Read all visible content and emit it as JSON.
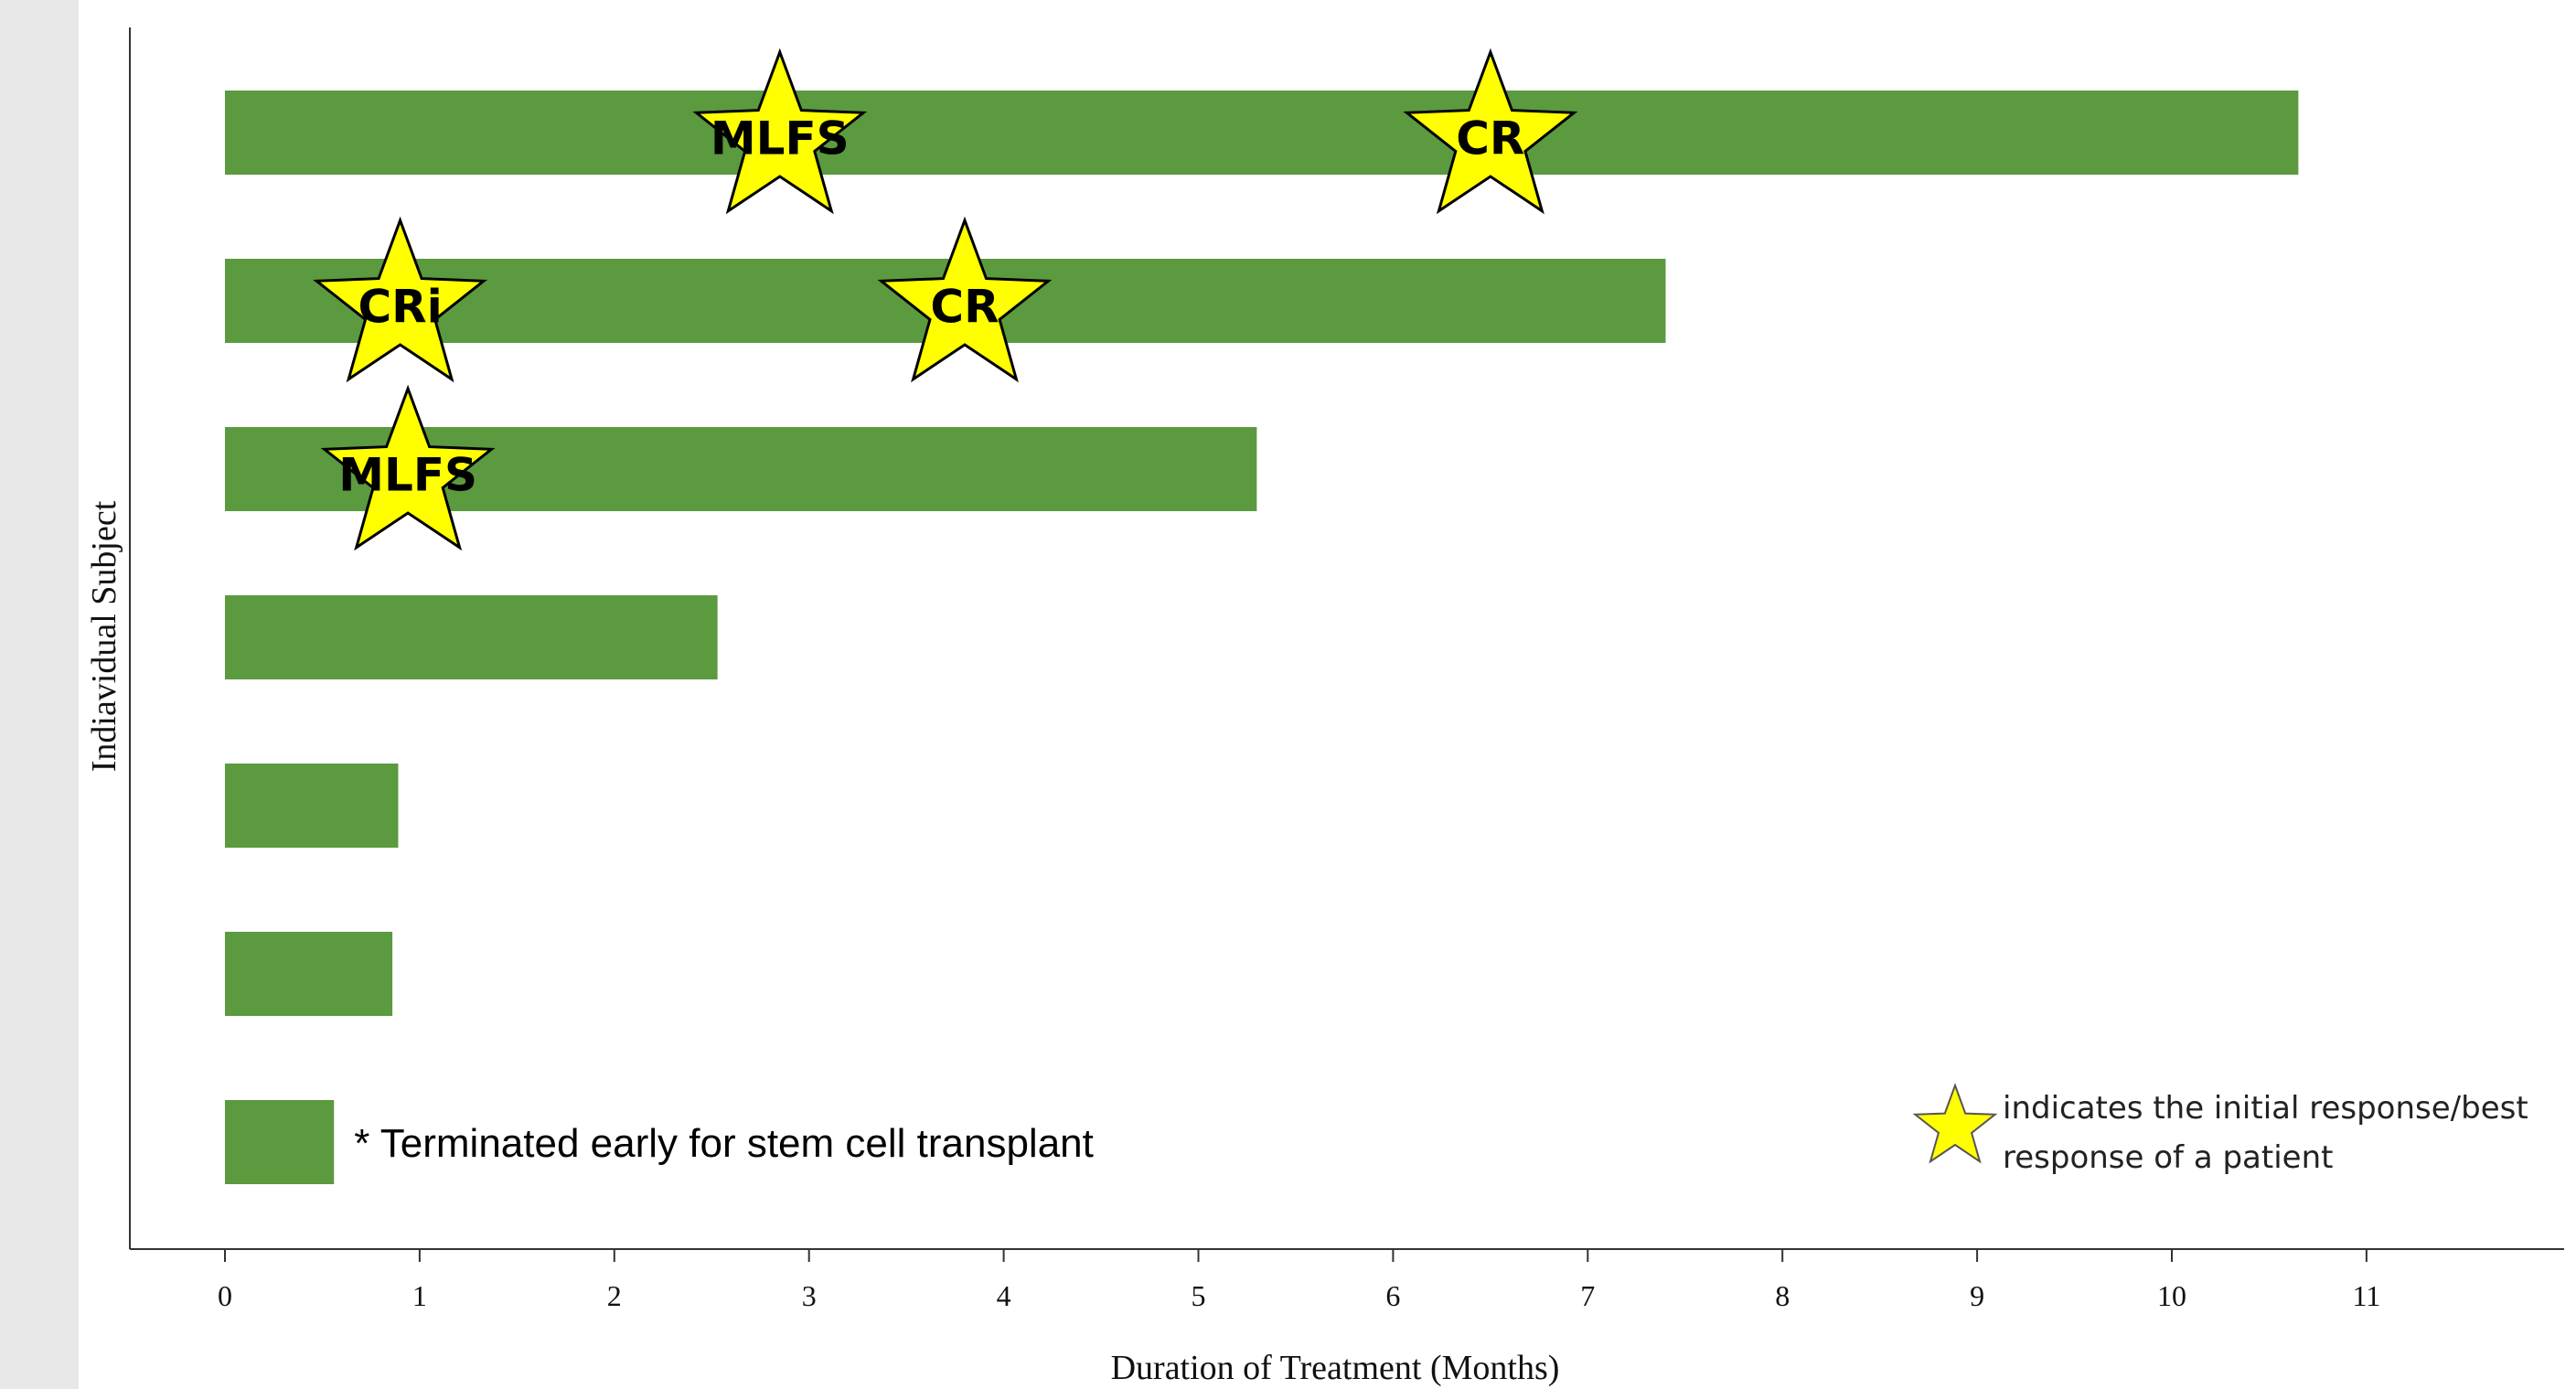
{
  "chart_data": {
    "type": "bar",
    "orientation": "horizontal",
    "xlabel": "Duration of Treatment (Months)",
    "ylabel": "Indiavidual Subject",
    "xlim": [
      0,
      11
    ],
    "xticks": [
      0,
      1,
      2,
      3,
      4,
      5,
      6,
      7,
      8,
      9,
      10,
      11
    ],
    "bar_color": "#5b9a3e",
    "star_color": "#ffff00",
    "values": [
      10.65,
      7.4,
      5.3,
      2.53,
      0.89,
      0.86,
      0.56
    ],
    "responses": [
      [
        {
          "label": "MLFS",
          "x": 2.85
        },
        {
          "label": "CR",
          "x": 6.5
        }
      ],
      [
        {
          "label": "CRi",
          "x": 0.9
        },
        {
          "label": "CR",
          "x": 3.8
        }
      ],
      [
        {
          "label": "MLFS",
          "x": 0.94
        }
      ],
      [],
      [],
      [],
      []
    ],
    "annotations": [
      {
        "bar_index": 6,
        "text": "* Terminated early for stem cell transplant"
      }
    ],
    "legend": {
      "position": "bottom-right",
      "lines": [
        "indicates the initial response/best",
        "response of a patient"
      ]
    }
  }
}
